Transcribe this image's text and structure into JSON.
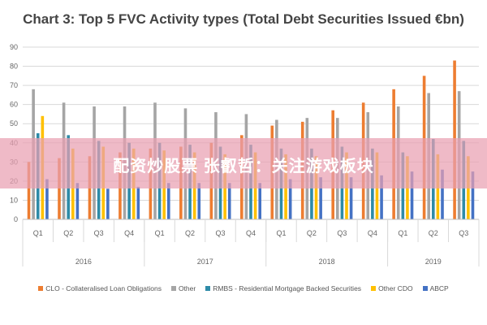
{
  "page": {
    "title": "Chart 3: Top 5 FVC Activity types (Total Debt Securities Issued €bn)",
    "watermark": "配资炒股票 张叡哲：关注游戏板块"
  },
  "chart_data": {
    "type": "bar",
    "title": "Chart 3: Top 5 FVC Activity types (Total Debt Securities Issued €bn)",
    "categories": [
      "Q1",
      "Q2",
      "Q3",
      "Q4",
      "Q1",
      "Q2",
      "Q3",
      "Q4",
      "Q1",
      "Q2",
      "Q3",
      "Q4",
      "Q1",
      "Q2",
      "Q3"
    ],
    "years": [
      {
        "label": "2016",
        "quarters": 4
      },
      {
        "label": "2017",
        "quarters": 4
      },
      {
        "label": "2018",
        "quarters": 4
      },
      {
        "label": "2019",
        "quarters": 3
      }
    ],
    "ylim": [
      0,
      90
    ],
    "yticks": [
      0,
      10,
      20,
      30,
      40,
      50,
      60,
      70,
      80,
      90
    ],
    "grid": true,
    "legend_position": "bottom",
    "series": [
      {
        "name": "CLO - Collateralised Loan Obligations",
        "color": "#ed7d31",
        "values": [
          30,
          32,
          33,
          35,
          37,
          38,
          40,
          44,
          49,
          51,
          57,
          61,
          68,
          75,
          83
        ]
      },
      {
        "name": "Other",
        "color": "#a5a5a5",
        "values": [
          68,
          61,
          59,
          59,
          61,
          58,
          56,
          55,
          52,
          53,
          53,
          56,
          59,
          66,
          67
        ]
      },
      {
        "name": "RMBS - Residential Mortgage Backed Securities",
        "color": "#2e8ba8",
        "values": [
          45,
          44,
          41,
          40,
          40,
          39,
          38,
          39,
          37,
          37,
          38,
          37,
          35,
          42,
          41
        ]
      },
      {
        "name": "Other CDO",
        "color": "#ffc000",
        "values": [
          54,
          37,
          38,
          37,
          36,
          35,
          34,
          35,
          34,
          33,
          35,
          35,
          33,
          34,
          33
        ]
      },
      {
        "name": "ABCP",
        "color": "#4472c4",
        "values": [
          21,
          19,
          16,
          17,
          19,
          19,
          19,
          19,
          21,
          22,
          22,
          23,
          25,
          26,
          25
        ]
      }
    ]
  }
}
